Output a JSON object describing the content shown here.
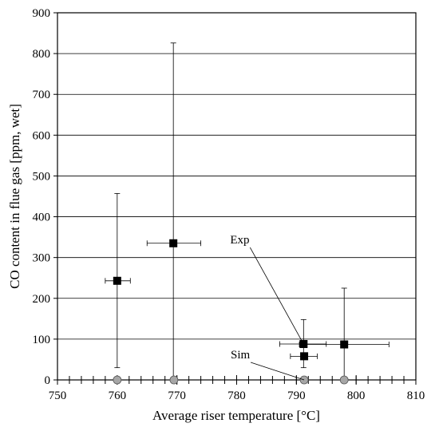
{
  "chart_data": {
    "type": "scatter",
    "xlabel": "Average riser temperature [°C]",
    "ylabel": "CO content in flue gas [ppm, wet]",
    "xlim": [
      750,
      810
    ],
    "ylim": [
      0,
      900
    ],
    "xticks": [
      750,
      760,
      770,
      780,
      790,
      800,
      810
    ],
    "yticks": [
      0,
      100,
      200,
      300,
      400,
      500,
      600,
      700,
      800,
      900
    ],
    "x_minor_step": 2,
    "grid": "horizontal",
    "series": [
      {
        "key": "exp",
        "marker": "square",
        "color": "#000000",
        "points": [
          {
            "x": 760.0,
            "y": 243,
            "x_err": [
              758.0,
              762.2
            ],
            "y_err": [
              30,
              457
            ]
          },
          {
            "x": 769.4,
            "y": 335,
            "x_err": [
              765.0,
              774.0
            ],
            "y_err": [
              0,
              826
            ]
          },
          {
            "x": 791.2,
            "y": 88,
            "x_err": [
              787.2,
              795.0
            ],
            "y_err": [
              30,
              148
            ]
          },
          {
            "x": 791.3,
            "y": 58,
            "x_err": [
              789.0,
              793.5
            ],
            "y_err": null
          },
          {
            "x": 798.0,
            "y": 87,
            "x_err": [
              790.5,
              805.5
            ],
            "y_err": [
              0,
              225
            ]
          }
        ]
      },
      {
        "key": "sim",
        "marker": "circle",
        "color": "#a6a6a6",
        "points": [
          {
            "x": 760.0,
            "y": 0
          },
          {
            "x": 769.5,
            "y": 0
          },
          {
            "x": 791.3,
            "y": 0
          },
          {
            "x": 798.0,
            "y": 0
          }
        ]
      }
    ],
    "annotations": [
      {
        "text": "Exp",
        "target": {
          "x": 791.2,
          "y": 88
        }
      },
      {
        "text": "Sim",
        "target": {
          "x": 791.3,
          "y": 0
        }
      }
    ]
  }
}
